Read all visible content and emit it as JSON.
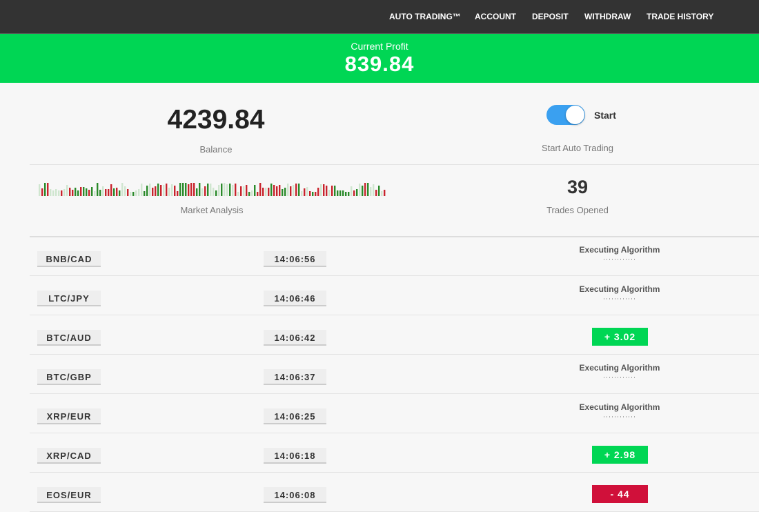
{
  "nav": {
    "items": [
      "AUTO TRADING™",
      "ACCOUNT",
      "DEPOSIT",
      "WITHDRAW",
      "TRADE HISTORY"
    ]
  },
  "profit": {
    "label": "Current Profit",
    "value": "839.84"
  },
  "balance": {
    "value": "4239.84",
    "label": "Balance"
  },
  "auto_trading": {
    "toggle_label": "Start",
    "caption": "Start Auto Trading",
    "on": true
  },
  "market_analysis": {
    "label": "Market Analysis"
  },
  "trades_opened": {
    "value": "39",
    "label": "Trades Opened"
  },
  "trades": [
    {
      "pair": "BNB/CAD",
      "time": "14:06:56",
      "status": "Executing Algorithm"
    },
    {
      "pair": "LTC/JPY",
      "time": "14:06:46",
      "status": "Executing Algorithm"
    },
    {
      "pair": "BTC/AUD",
      "time": "14:06:42",
      "result": "+ 3.02",
      "outcome": "profit"
    },
    {
      "pair": "BTC/GBP",
      "time": "14:06:37",
      "status": "Executing Algorithm"
    },
    {
      "pair": "XRP/EUR",
      "time": "14:06:25",
      "status": "Executing Algorithm"
    },
    {
      "pair": "XRP/CAD",
      "time": "14:06:18",
      "result": "+ 2.98",
      "outcome": "profit"
    },
    {
      "pair": "EOS/EUR",
      "time": "14:06:08",
      "result": "-  44",
      "outcome": "loss"
    }
  ]
}
